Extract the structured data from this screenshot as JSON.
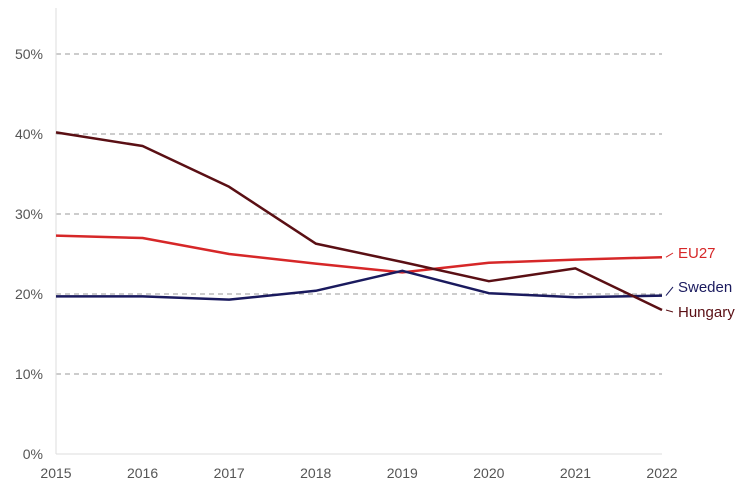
{
  "chart_data": {
    "type": "line",
    "title": "",
    "xlabel": "",
    "ylabel": "",
    "x": [
      2015,
      2016,
      2017,
      2018,
      2019,
      2020,
      2021,
      2022
    ],
    "x_tick_labels": [
      "2015",
      "2016",
      "2017",
      "2018",
      "2019",
      "2020",
      "2021",
      "2022"
    ],
    "y_ticks": [
      0,
      10,
      20,
      30,
      40,
      50
    ],
    "y_tick_labels": [
      "0%",
      "10%",
      "20%",
      "30%",
      "40%",
      "50%"
    ],
    "ylim": [
      0,
      56
    ],
    "grid": "horizontal-dashed",
    "legend": "right-end labels",
    "series": [
      {
        "name": "EU27",
        "color": "#d62728",
        "values": [
          27.3,
          27.0,
          25.0,
          23.8,
          22.7,
          23.9,
          24.3,
          24.6
        ]
      },
      {
        "name": "Sweden",
        "color": "#1a1a5e",
        "values": [
          19.7,
          19.7,
          19.3,
          20.4,
          22.9,
          20.1,
          19.6,
          19.8
        ]
      },
      {
        "name": "Hungary",
        "color": "#5a0f14",
        "values": [
          40.2,
          38.5,
          33.4,
          26.3,
          24.0,
          21.6,
          23.2,
          18.0
        ]
      }
    ]
  }
}
